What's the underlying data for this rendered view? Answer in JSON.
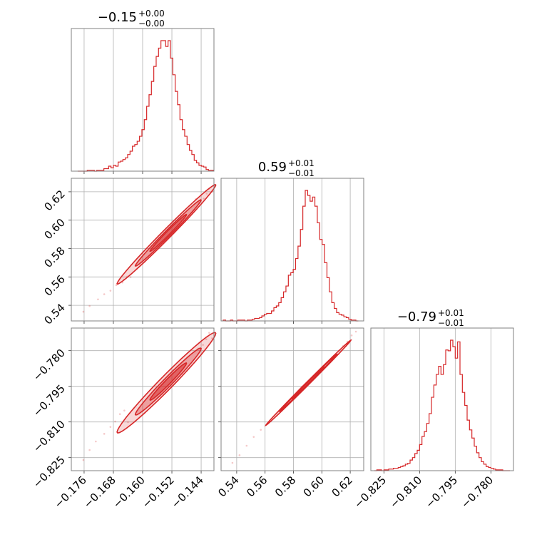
{
  "colors": {
    "main": "#d62728",
    "grid": "#b0b0b0",
    "frame": "#808080"
  },
  "chart_data": {
    "type": "corner",
    "grid": true,
    "parameters": [
      {
        "title": {
          "value": "−0.15",
          "plus": "+0.00",
          "minus": "−0.00"
        },
        "range": [
          -0.1795,
          -0.1405
        ],
        "ticks": [
          -0.176,
          -0.168,
          -0.16,
          -0.152,
          -0.144
        ],
        "tick_labels": [
          "−0.176",
          "−0.168",
          "−0.160",
          "−0.152",
          "−0.144"
        ],
        "hist_edges": [
          -0.17775,
          -0.1771,
          -0.17645,
          -0.1758,
          -0.17515,
          -0.1745,
          -0.17385,
          -0.1732,
          -0.17255,
          -0.1719,
          -0.17125,
          -0.1706,
          -0.16995,
          -0.1693,
          -0.16865,
          -0.168,
          -0.16735,
          -0.1667,
          -0.16605,
          -0.1654,
          -0.16475,
          -0.1641,
          -0.16345,
          -0.1628,
          -0.16215,
          -0.1615,
          -0.16085,
          -0.1602,
          -0.15955,
          -0.1589,
          -0.15825,
          -0.1576,
          -0.15695,
          -0.1563,
          -0.15565,
          -0.155,
          -0.15435,
          -0.1537,
          -0.15305,
          -0.1524,
          -0.15175,
          -0.1511,
          -0.15045,
          -0.1498,
          -0.14915,
          -0.1485,
          -0.14785,
          -0.1472,
          -0.14655,
          -0.1459,
          -0.14525,
          -0.1446,
          -0.14395,
          -0.1433,
          -0.14265,
          -0.142,
          -0.14135,
          -0.1407
        ],
        "hist_counts": [
          0,
          0,
          0,
          0,
          1,
          1,
          1,
          0,
          1,
          1,
          1,
          3,
          3,
          6,
          4,
          7,
          6,
          11,
          12,
          14,
          16,
          20,
          24,
          30,
          32,
          36,
          42,
          50,
          62,
          78,
          92,
          108,
          126,
          138,
          148,
          157,
          157,
          150,
          157,
          136,
          116,
          96,
          80,
          62,
          50,
          42,
          32,
          25,
          20,
          13,
          10,
          7,
          6,
          5,
          2,
          1,
          1
        ]
      },
      {
        "title": {
          "value": "0.59",
          "plus": "+0.01",
          "minus": "−0.01"
        },
        "range": [
          0.529,
          0.6295
        ],
        "ticks": [
          0.54,
          0.56,
          0.58,
          0.6,
          0.62
        ],
        "tick_labels": [
          "0.54",
          "0.56",
          "0.58",
          "0.60",
          "0.62"
        ],
        "hist_edges": [
          0.5305,
          0.5322,
          0.5339,
          0.5356,
          0.5373,
          0.539,
          0.5407,
          0.5424,
          0.5441,
          0.5458,
          0.5475,
          0.5492,
          0.5509,
          0.5526,
          0.5543,
          0.556,
          0.5577,
          0.5594,
          0.5611,
          0.5628,
          0.5645,
          0.5662,
          0.5679,
          0.5696,
          0.5713,
          0.573,
          0.5747,
          0.5764,
          0.5781,
          0.5798,
          0.5815,
          0.5832,
          0.5849,
          0.5866,
          0.5883,
          0.59,
          0.5917,
          0.5934,
          0.5951,
          0.5968,
          0.5985,
          0.6002,
          0.6019,
          0.6036,
          0.6053,
          0.607,
          0.6087,
          0.6104,
          0.6121,
          0.6138,
          0.6155,
          0.6172,
          0.6189,
          0.6206,
          0.6223,
          0.624,
          0.6257
        ],
        "hist_counts": [
          1,
          0,
          0,
          1,
          0,
          0,
          1,
          1,
          1,
          0,
          1,
          1,
          2,
          3,
          3,
          4,
          6,
          8,
          9,
          9,
          12,
          16,
          18,
          22,
          28,
          35,
          42,
          55,
          58,
          62,
          75,
          90,
          110,
          138,
          157,
          151,
          144,
          149,
          138,
          118,
          98,
          92,
          70,
          52,
          35,
          22,
          15,
          10,
          8,
          7,
          5,
          4,
          2,
          1,
          1,
          0
        ]
      },
      {
        "title": {
          "value": "−0.79",
          "plus": "+0.01",
          "minus": "−0.01"
        },
        "range": [
          -0.8305,
          -0.7705
        ],
        "ticks": [
          -0.825,
          -0.81,
          -0.795,
          -0.78
        ],
        "tick_labels": [
          "−0.825",
          "−0.810",
          "−0.795",
          "−0.780"
        ],
        "hist_edges": [
          -0.829,
          -0.828,
          -0.827,
          -0.826,
          -0.825,
          -0.824,
          -0.823,
          -0.822,
          -0.821,
          -0.82,
          -0.819,
          -0.818,
          -0.817,
          -0.816,
          -0.815,
          -0.814,
          -0.813,
          -0.812,
          -0.811,
          -0.81,
          -0.809,
          -0.808,
          -0.807,
          -0.806,
          -0.805,
          -0.804,
          -0.803,
          -0.802,
          -0.801,
          -0.8,
          -0.799,
          -0.798,
          -0.797,
          -0.796,
          -0.795,
          -0.794,
          -0.793,
          -0.792,
          -0.791,
          -0.79,
          -0.789,
          -0.788,
          -0.787,
          -0.786,
          -0.785,
          -0.784,
          -0.783,
          -0.782,
          -0.781,
          -0.78,
          -0.779,
          -0.778,
          -0.777,
          -0.776,
          -0.775,
          -0.774,
          -0.773,
          -0.772
        ],
        "hist_counts": [
          0,
          1,
          1,
          0,
          1,
          1,
          2,
          2,
          3,
          3,
          4,
          5,
          6,
          8,
          9,
          13,
          16,
          21,
          25,
          32,
          42,
          48,
          58,
          70,
          90,
          105,
          118,
          128,
          118,
          130,
          148,
          147,
          160,
          152,
          138,
          158,
          118,
          96,
          80,
          62,
          50,
          40,
          30,
          22,
          16,
          11,
          8,
          5,
          4,
          3,
          2,
          1,
          1,
          1,
          0,
          0,
          0
        ]
      }
    ],
    "pairs": [
      {
        "x_param": 0,
        "y_param": 1,
        "contours": [
          {
            "center": [
              -0.1535,
              0.59
            ],
            "half_len_x": 0.0135,
            "half_width_y": 0.0045,
            "level": "outer"
          },
          {
            "center": [
              -0.153,
              0.591
            ],
            "half_len_x": 0.009,
            "half_width_y": 0.003,
            "level": "mid"
          },
          {
            "center": [
              -0.153,
              0.591
            ],
            "half_len_x": 0.005,
            "half_width_y": 0.0018,
            "level": "inner"
          }
        ],
        "scatter": [
          [
            -0.1762,
            0.5355
          ],
          [
            -0.1745,
            0.5395
          ],
          [
            -0.1722,
            0.5442
          ],
          [
            -0.1705,
            0.5478
          ],
          [
            -0.1688,
            0.5503
          ],
          [
            -0.1672,
            0.5542
          ],
          [
            -0.1655,
            0.5561
          ],
          [
            -0.1651,
            0.5581
          ],
          [
            -0.1642,
            0.5602
          ],
          [
            -0.1633,
            0.5599
          ],
          [
            -0.1418,
            0.6222
          ],
          [
            -0.1425,
            0.6187
          ],
          [
            -0.1433,
            0.6152
          ],
          [
            -0.141,
            0.6201
          ],
          [
            -0.1446,
            0.6122
          ],
          [
            -0.1455,
            0.6148
          ]
        ]
      },
      {
        "x_param": 0,
        "y_param": 2,
        "contours": [
          {
            "center": [
              -0.1535,
              -0.7935
            ],
            "half_len_x": 0.0135,
            "half_width_y": 0.004,
            "level": "outer"
          },
          {
            "center": [
              -0.153,
              -0.793
            ],
            "half_len_x": 0.009,
            "half_width_y": 0.0026,
            "level": "mid"
          },
          {
            "center": [
              -0.153,
              -0.793
            ],
            "half_len_x": 0.005,
            "half_width_y": 0.0015,
            "level": "inner"
          }
        ],
        "scatter": [
          [
            -0.1762,
            -0.826
          ],
          [
            -0.1745,
            -0.8218
          ],
          [
            -0.1728,
            -0.8182
          ],
          [
            -0.1705,
            -0.815
          ],
          [
            -0.1688,
            -0.8121
          ],
          [
            -0.1675,
            -0.8098
          ],
          [
            -0.1662,
            -0.8067
          ],
          [
            -0.165,
            -0.8052
          ],
          [
            -0.164,
            -0.8101
          ],
          [
            -0.1418,
            -0.7725
          ],
          [
            -0.1426,
            -0.7752
          ],
          [
            -0.1435,
            -0.7776
          ],
          [
            -0.141,
            -0.7748
          ],
          [
            -0.1448,
            -0.7791
          ]
        ]
      },
      {
        "x_param": 1,
        "y_param": 2,
        "contours": [
          {
            "center": [
              0.5905,
              -0.7935
            ],
            "half_len_x": 0.03,
            "half_width_y": 0.0009,
            "level": "outer"
          },
          {
            "center": [
              0.5905,
              -0.7935
            ],
            "half_len_x": 0.02,
            "half_width_y": 0.0006,
            "level": "mid"
          },
          {
            "center": [
              0.5905,
              -0.7935
            ],
            "half_len_x": 0.011,
            "half_width_y": 0.0004,
            "level": "inner"
          }
        ],
        "scatter": [
          [
            0.537,
            -0.8272
          ],
          [
            0.542,
            -0.824
          ],
          [
            0.547,
            -0.82
          ],
          [
            0.552,
            -0.8163
          ],
          [
            0.557,
            -0.8133
          ],
          [
            0.621,
            -0.7736
          ],
          [
            0.618,
            -0.7762
          ],
          [
            0.615,
            -0.7781
          ],
          [
            0.612,
            -0.78
          ],
          [
            0.624,
            -0.772
          ]
        ]
      }
    ]
  }
}
